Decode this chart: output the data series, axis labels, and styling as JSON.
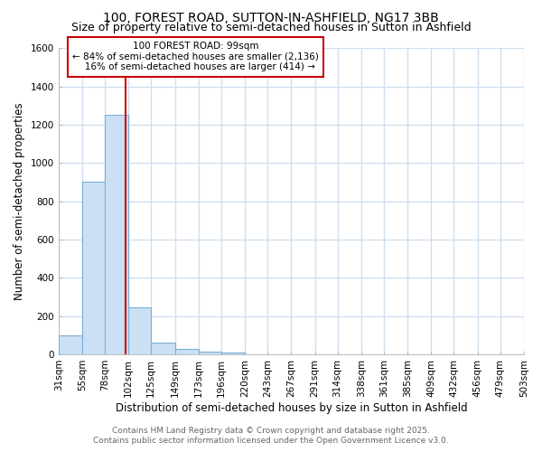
{
  "title1": "100, FOREST ROAD, SUTTON-IN-ASHFIELD, NG17 3BB",
  "title2": "Size of property relative to semi-detached houses in Sutton in Ashfield",
  "xlabel": "Distribution of semi-detached houses by size in Sutton in Ashfield",
  "ylabel": "Number of semi-detached properties",
  "bin_labels": [
    "31sqm",
    "55sqm",
    "78sqm",
    "102sqm",
    "125sqm",
    "149sqm",
    "173sqm",
    "196sqm",
    "220sqm",
    "243sqm",
    "267sqm",
    "291sqm",
    "314sqm",
    "338sqm",
    "361sqm",
    "385sqm",
    "409sqm",
    "432sqm",
    "456sqm",
    "479sqm",
    "503sqm"
  ],
  "bin_edges": [
    31,
    55,
    78,
    102,
    125,
    149,
    173,
    196,
    220,
    243,
    267,
    291,
    314,
    338,
    361,
    385,
    409,
    432,
    456,
    479,
    503
  ],
  "bar_heights": [
    100,
    900,
    1250,
    245,
    62,
    28,
    15,
    10,
    0,
    0,
    0,
    0,
    0,
    0,
    0,
    0,
    0,
    0,
    0,
    0
  ],
  "bar_color": "#cce0f5",
  "bar_edgecolor": "#7aafd4",
  "property_size": 99,
  "vline_color": "#cc0000",
  "annotation_line1": "100 FOREST ROAD: 99sqm",
  "annotation_line2": "← 84% of semi-detached houses are smaller (2,136)",
  "annotation_line3": "   16% of semi-detached houses are larger (414) →",
  "annotation_boxcolor": "white",
  "annotation_edgecolor": "#cc0000",
  "ylim": [
    0,
    1600
  ],
  "yticks": [
    0,
    200,
    400,
    600,
    800,
    1000,
    1200,
    1400,
    1600
  ],
  "footer1": "Contains HM Land Registry data © Crown copyright and database right 2025.",
  "footer2": "Contains public sector information licensed under the Open Government Licence v3.0.",
  "bg_color": "#ffffff",
  "grid_color": "#d0e0f0",
  "title1_fontsize": 10,
  "title2_fontsize": 9,
  "axis_label_fontsize": 8.5,
  "tick_fontsize": 7.5,
  "footer_fontsize": 6.5,
  "annot_fontsize": 7.5
}
